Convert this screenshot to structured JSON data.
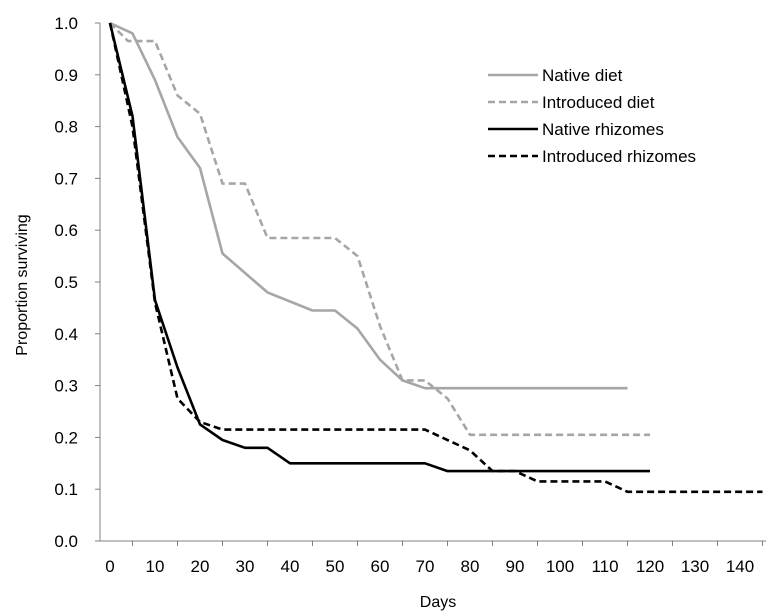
{
  "chart_data": {
    "type": "line",
    "xlabel": "Days",
    "ylabel": "Proportion surviving",
    "xlim": [
      0,
      145
    ],
    "ylim": [
      0,
      1.0
    ],
    "x_ticks": [
      0,
      10,
      20,
      30,
      40,
      50,
      60,
      70,
      80,
      90,
      100,
      110,
      120,
      130,
      140
    ],
    "y_ticks": [
      0.0,
      0.1,
      0.2,
      0.3,
      0.4,
      0.5,
      0.6,
      0.7,
      0.8,
      0.9,
      1.0
    ],
    "x_tick_labels": [
      "0",
      "10",
      "20",
      "30",
      "40",
      "50",
      "60",
      "70",
      "80",
      "90",
      "100",
      "110",
      "120",
      "130",
      "140"
    ],
    "y_tick_labels": [
      "0.0",
      "0.1",
      "0.2",
      "0.3",
      "0.4",
      "0.5",
      "0.6",
      "0.7",
      "0.8",
      "0.9",
      "1.0"
    ],
    "grid": false,
    "legend_position": "top-right",
    "series": [
      {
        "name": "Native diet",
        "color": "#a6a6a6",
        "dash": "solid",
        "points": [
          [
            0,
            1.0
          ],
          [
            5,
            0.98
          ],
          [
            10,
            0.89
          ],
          [
            15,
            0.78
          ],
          [
            20,
            0.72
          ],
          [
            25,
            0.555
          ],
          [
            35,
            0.48
          ],
          [
            45,
            0.445
          ],
          [
            50,
            0.445
          ],
          [
            55,
            0.41
          ],
          [
            60,
            0.35
          ],
          [
            65,
            0.31
          ],
          [
            70,
            0.295
          ],
          [
            75,
            0.295
          ],
          [
            115,
            0.295
          ]
        ]
      },
      {
        "name": "Introduced diet",
        "color": "#a6a6a6",
        "dash": "dashed",
        "points": [
          [
            0,
            1.0
          ],
          [
            4,
            0.965
          ],
          [
            10,
            0.965
          ],
          [
            15,
            0.86
          ],
          [
            20,
            0.825
          ],
          [
            25,
            0.69
          ],
          [
            30,
            0.69
          ],
          [
            35,
            0.585
          ],
          [
            50,
            0.585
          ],
          [
            55,
            0.55
          ],
          [
            60,
            0.415
          ],
          [
            65,
            0.31
          ],
          [
            70,
            0.31
          ],
          [
            75,
            0.275
          ],
          [
            80,
            0.205
          ],
          [
            120,
            0.205
          ]
        ]
      },
      {
        "name": "Native rhizomes",
        "color": "#000000",
        "dash": "solid",
        "points": [
          [
            0,
            1.0
          ],
          [
            5,
            0.82
          ],
          [
            10,
            0.465
          ],
          [
            15,
            0.335
          ],
          [
            20,
            0.225
          ],
          [
            25,
            0.195
          ],
          [
            30,
            0.18
          ],
          [
            35,
            0.18
          ],
          [
            40,
            0.15
          ],
          [
            70,
            0.15
          ],
          [
            75,
            0.135
          ],
          [
            120,
            0.135
          ]
        ]
      },
      {
        "name": "Introduced rhizomes",
        "color": "#000000",
        "dash": "dashed",
        "points": [
          [
            0,
            1.0
          ],
          [
            5,
            0.8
          ],
          [
            10,
            0.46
          ],
          [
            15,
            0.275
          ],
          [
            20,
            0.23
          ],
          [
            25,
            0.215
          ],
          [
            70,
            0.215
          ],
          [
            80,
            0.175
          ],
          [
            85,
            0.135
          ],
          [
            90,
            0.135
          ],
          [
            95,
            0.115
          ],
          [
            110,
            0.115
          ],
          [
            115,
            0.095
          ],
          [
            145,
            0.095
          ]
        ]
      }
    ]
  }
}
